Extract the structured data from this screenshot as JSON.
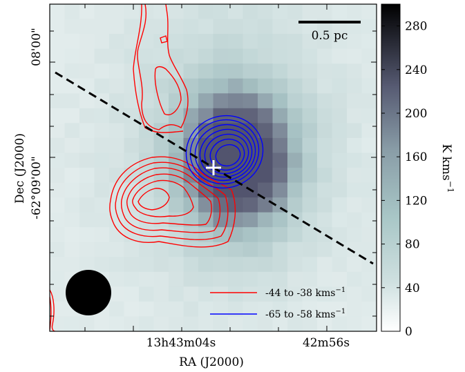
{
  "chart_data": {
    "type": "heatmap",
    "xlabel": "RA (J2000)",
    "ylabel": "Dec (J2000)",
    "x_ticks": [
      "13h43m04s",
      "42m56s"
    ],
    "y_ticks": [
      "08'00\"",
      "-62°09'00\""
    ],
    "colorbar": {
      "label": "K kms",
      "label_sup": "−1",
      "ticks": [
        0,
        40,
        80,
        120,
        160,
        200,
        240,
        280
      ],
      "range": [
        0,
        300
      ],
      "colormap": "bone_r"
    },
    "scale_bar": {
      "label": "0.5 pc"
    },
    "legend": {
      "placement": "lower-right",
      "entries": [
        {
          "range": "-44 to -38",
          "unit": "kms",
          "sup": "−1",
          "color": "#ff0000"
        },
        {
          "range": "-65 to -58",
          "unit": "kms",
          "sup": "−1",
          "color": "#0000ff"
        }
      ]
    },
    "grid": false
  }
}
